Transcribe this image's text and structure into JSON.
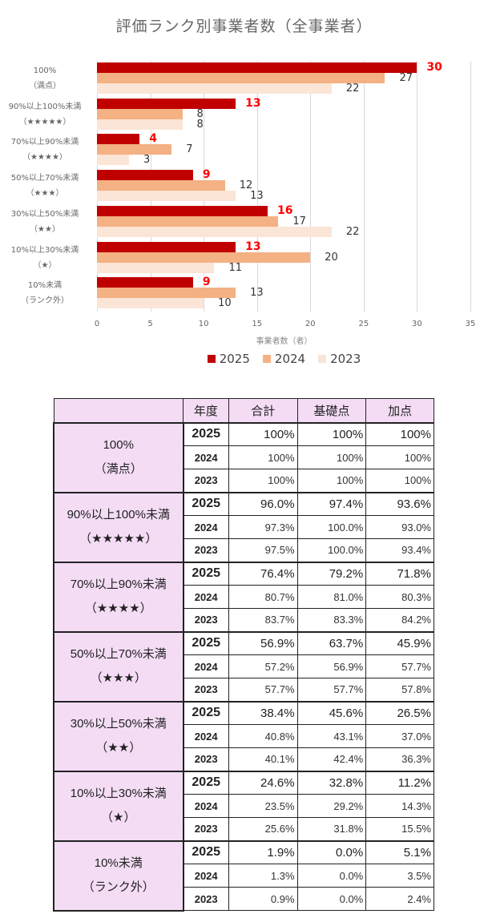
{
  "chart_data": {
    "type": "bar",
    "orientation": "horizontal",
    "title": "評価ランク別事業者数（全事業者）",
    "xlabel": "事業者数（者）",
    "ylabel": "",
    "xlim": [
      0,
      35
    ],
    "xticks": [
      0,
      5,
      10,
      15,
      20,
      25,
      30,
      35
    ],
    "grid": true,
    "legend_position": "bottom",
    "categories": [
      "100%（満点）",
      "90%以上100%未満（★★★★★）",
      "70%以上90%未満（★★★★）",
      "50%以上70%未満（★★★）",
      "30%以上50%未満（★★）",
      "10%以上30%未満（★）",
      "10%未満（ランク外）"
    ],
    "series": [
      {
        "name": "2025",
        "color": "#c00000",
        "values": [
          30,
          13,
          4,
          9,
          16,
          13,
          9
        ]
      },
      {
        "name": "2024",
        "color": "#f4b183",
        "values": [
          27,
          8,
          7,
          12,
          17,
          20,
          13
        ]
      },
      {
        "name": "2023",
        "color": "#fbe5d6",
        "values": [
          22,
          8,
          3,
          13,
          22,
          11,
          10
        ]
      }
    ]
  },
  "chart": {
    "title": "評価ランク別事業者数（全事業者）",
    "xlabel": "事業者数（者）",
    "xticks": [
      "0",
      "5",
      "10",
      "15",
      "20",
      "25",
      "30",
      "35"
    ],
    "legend": [
      "2025",
      "2024",
      "2023"
    ],
    "categories": [
      {
        "line1": "100%",
        "line2": "（満点）"
      },
      {
        "line1": "90%以上100%未満",
        "line2": "（★★★★★）"
      },
      {
        "line1": "70%以上90%未満",
        "line2": "（★★★★）"
      },
      {
        "line1": "50%以上70%未満",
        "line2": "（★★★）"
      },
      {
        "line1": "30%以上50%未満",
        "line2": "（★★）"
      },
      {
        "line1": "10%以上30%未満",
        "line2": "（★）"
      },
      {
        "line1": "10%未満",
        "line2": "（ランク外）"
      }
    ]
  },
  "table": {
    "headers": [
      "",
      "年度",
      "合計",
      "基礎点",
      "加点"
    ],
    "groups": [
      {
        "rank_line1": "100%",
        "rank_line2": "（満点）",
        "rows": [
          {
            "year": "2025",
            "total": "100%",
            "base": "100%",
            "bonus": "100%"
          },
          {
            "year": "2024",
            "total": "100%",
            "base": "100%",
            "bonus": "100%"
          },
          {
            "year": "2023",
            "total": "100%",
            "base": "100%",
            "bonus": "100%"
          }
        ]
      },
      {
        "rank_line1": "90%以上100%未満",
        "rank_line2": "（★★★★★）",
        "rows": [
          {
            "year": "2025",
            "total": "96.0%",
            "base": "97.4%",
            "bonus": "93.6%"
          },
          {
            "year": "2024",
            "total": "97.3%",
            "base": "100.0%",
            "bonus": "93.0%"
          },
          {
            "year": "2023",
            "total": "97.5%",
            "base": "100.0%",
            "bonus": "93.4%"
          }
        ]
      },
      {
        "rank_line1": "70%以上90%未満",
        "rank_line2": "（★★★★）",
        "rows": [
          {
            "year": "2025",
            "total": "76.4%",
            "base": "79.2%",
            "bonus": "71.8%"
          },
          {
            "year": "2024",
            "total": "80.7%",
            "base": "81.0%",
            "bonus": "80.3%"
          },
          {
            "year": "2023",
            "total": "83.7%",
            "base": "83.3%",
            "bonus": "84.2%"
          }
        ]
      },
      {
        "rank_line1": "50%以上70%未満",
        "rank_line2": "（★★★）",
        "rows": [
          {
            "year": "2025",
            "total": "56.9%",
            "base": "63.7%",
            "bonus": "45.9%"
          },
          {
            "year": "2024",
            "total": "57.2%",
            "base": "56.9%",
            "bonus": "57.7%"
          },
          {
            "year": "2023",
            "total": "57.7%",
            "base": "57.7%",
            "bonus": "57.8%"
          }
        ]
      },
      {
        "rank_line1": "30%以上50%未満",
        "rank_line2": "（★★）",
        "rows": [
          {
            "year": "2025",
            "total": "38.4%",
            "base": "45.6%",
            "bonus": "26.5%"
          },
          {
            "year": "2024",
            "total": "40.8%",
            "base": "43.1%",
            "bonus": "37.0%"
          },
          {
            "year": "2023",
            "total": "40.1%",
            "base": "42.4%",
            "bonus": "36.3%"
          }
        ]
      },
      {
        "rank_line1": "10%以上30%未満",
        "rank_line2": "（★）",
        "rows": [
          {
            "year": "2025",
            "total": "24.6%",
            "base": "32.8%",
            "bonus": "11.2%"
          },
          {
            "year": "2024",
            "total": "23.5%",
            "base": "29.2%",
            "bonus": "14.3%"
          },
          {
            "year": "2023",
            "total": "25.6%",
            "base": "31.8%",
            "bonus": "15.5%"
          }
        ]
      },
      {
        "rank_line1": "10%未満",
        "rank_line2": "（ランク外）",
        "rows": [
          {
            "year": "2025",
            "total": "1.9%",
            "base": "0.0%",
            "bonus": "5.1%"
          },
          {
            "year": "2024",
            "total": "1.3%",
            "base": "0.0%",
            "bonus": "3.5%"
          },
          {
            "year": "2023",
            "total": "0.9%",
            "base": "0.0%",
            "bonus": "2.4%"
          }
        ]
      }
    ]
  }
}
